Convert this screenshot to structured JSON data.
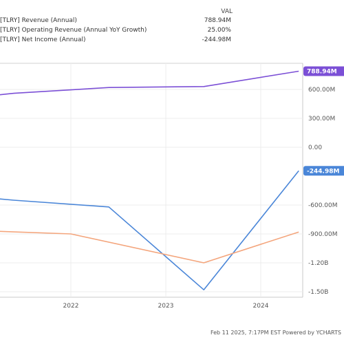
{
  "legend": {
    "header": "VAL",
    "rows": [
      {
        "label": "[TLRY] Revenue (Annual)",
        "value": "788.94M",
        "color": "#7b4fd6"
      },
      {
        "label": "[TLRY] Operating Revenue (Annual YoY Growth)",
        "value": "25.00%",
        "color": "#f4a57c"
      },
      {
        "label": "[TLRY] Net Income (Annual)",
        "value": "-244.98M",
        "color": "#4a86d8"
      }
    ]
  },
  "footer": "Feb 11 2025, 7:17PM EST  Powered by YCHARTS",
  "chart_data": {
    "type": "line",
    "x_ticks": [
      "2022",
      "2023",
      "2024"
    ],
    "y_ticks": [
      "600.00M",
      "300.00M",
      "0.00",
      "-600.00M",
      "-900.00M",
      "-1.20B",
      "-1.50B"
    ],
    "ylim": [
      -1500,
      900
    ],
    "grid": true,
    "series": [
      {
        "name": "[TLRY] Revenue (Annual)",
        "color": "#7b4fd6",
        "end_label": "788.94M",
        "x": [
          2020.4,
          2021.4,
          2022.4,
          2023.4,
          2024.4
        ],
        "y": [
          460,
          560,
          620,
          630,
          788.94
        ]
      },
      {
        "name": "[TLRY] Net Income (Annual)",
        "color": "#4a86d8",
        "end_label": "-244.98M",
        "x": [
          2020.4,
          2021.4,
          2022.4,
          2023.4,
          2024.4
        ],
        "y": [
          -460,
          -550,
          -620,
          -1480,
          -244.98
        ]
      },
      {
        "name": "[TLRY] Operating Revenue (Annual YoY Growth)",
        "color": "#f4a57c",
        "end_label": "",
        "x": [
          2020.4,
          2020.6,
          2022.0,
          2023.4,
          2024.4
        ],
        "y": [
          -600,
          -850,
          -900,
          -1200,
          -880
        ]
      }
    ]
  }
}
